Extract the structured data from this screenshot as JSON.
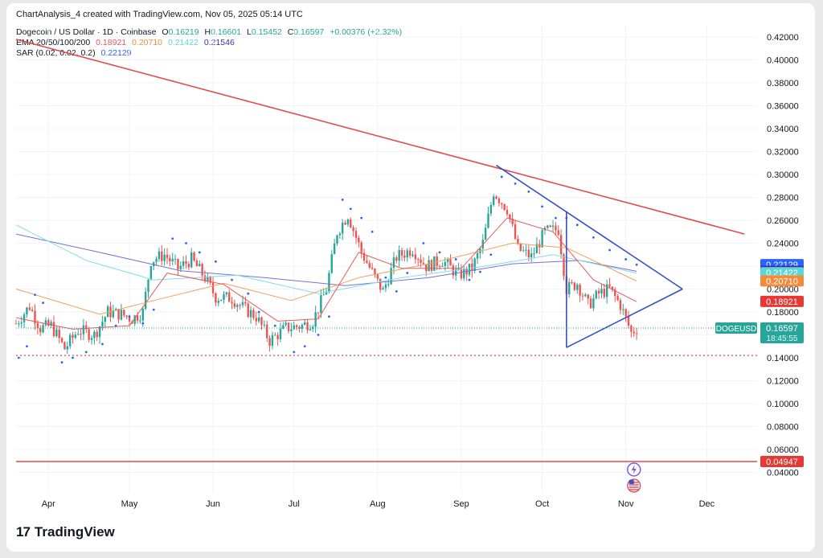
{
  "header": {
    "text": "ChartAnalysis_4 created with TradingView.com, Nov 05, 2025 05:14 UTC"
  },
  "legend": {
    "symbol_line": {
      "title": "Dogecoin / US Dollar · 1D · Coinbase",
      "o_label": "O",
      "o": "0.16219",
      "h_label": "H",
      "h": "0.16601",
      "l_label": "L",
      "l": "0.15452",
      "c_label": "C",
      "c": "0.16597",
      "change": "+0.00376 (+2.32%)"
    },
    "ema_line": {
      "title": "EMA 20/50/100/200",
      "v20": "0.18921",
      "v50": "0.20710",
      "v100": "0.21422",
      "v200": "0.21546"
    },
    "sar_line": {
      "title": "SAR (0.02, 0.02, 0.2)",
      "value": "0.22129"
    }
  },
  "brand": {
    "logo": "17",
    "name": "TradingView"
  },
  "colors": {
    "up": "#26a69a",
    "down": "#ef5350",
    "ema20": "#e8585a",
    "ema50": "#f0a05a",
    "ema100": "#7fe0e0",
    "ema200": "#7b6fd6",
    "sar": "#2962ff",
    "resistance": "#e14b4b",
    "triangle": "#3451c4",
    "support": "#e14b4b"
  },
  "chart_data": {
    "type": "candlestick",
    "symbol": "DOGEUSD",
    "timeframe": "1D",
    "y_axis": {
      "ticks": [
        "0.42000",
        "0.40000",
        "0.38000",
        "0.36000",
        "0.34000",
        "0.32000",
        "0.30000",
        "0.28000",
        "0.26000",
        "0.24000",
        "0.22000",
        "0.20000",
        "0.18000",
        "0.16000",
        "0.14000",
        "0.12000",
        "0.10000",
        "0.08000",
        "0.06000",
        "0.04000"
      ],
      "ylim": [
        0.03,
        0.425
      ]
    },
    "x_axis": {
      "ticks": [
        "Apr",
        "May",
        "Jun",
        "Jul",
        "Aug",
        "Sep",
        "Oct",
        "Nov",
        "Dec"
      ]
    },
    "price_labels": [
      {
        "label": "",
        "value": "0.22129",
        "color": "#2962ff"
      },
      {
        "label": "",
        "value": "0.21546",
        "color": "#3a2fa8"
      },
      {
        "label": "",
        "value": "0.21422",
        "color": "#5fd6d6"
      },
      {
        "label": "",
        "value": "0.20710",
        "color": "#f08c3c"
      },
      {
        "label": "",
        "value": "0.18921",
        "color": "#e53935"
      },
      {
        "label": "DOGEUSD",
        "value": "0.16597",
        "countdown": "18:45:55",
        "color": "#26a69a"
      },
      {
        "label": "",
        "value": "0.04947",
        "color": "#e53935"
      }
    ],
    "close_path": [
      [
        "2025-03-20",
        0.17
      ],
      [
        "2025-03-25",
        0.185
      ],
      [
        "2025-03-29",
        0.166
      ],
      [
        "2025-04-02",
        0.168
      ],
      [
        "2025-04-07",
        0.148
      ],
      [
        "2025-04-12",
        0.164
      ],
      [
        "2025-04-18",
        0.16
      ],
      [
        "2025-04-23",
        0.18
      ],
      [
        "2025-04-28",
        0.178
      ],
      [
        "2025-05-02",
        0.174
      ],
      [
        "2025-05-06",
        0.18
      ],
      [
        "2025-05-09",
        0.225
      ],
      [
        "2025-05-14",
        0.23
      ],
      [
        "2025-05-19",
        0.218
      ],
      [
        "2025-05-24",
        0.226
      ],
      [
        "2025-05-29",
        0.21
      ],
      [
        "2025-06-02",
        0.193
      ],
      [
        "2025-06-08",
        0.192
      ],
      [
        "2025-06-13",
        0.182
      ],
      [
        "2025-06-17",
        0.176
      ],
      [
        "2025-06-22",
        0.155
      ],
      [
        "2025-06-28",
        0.166
      ],
      [
        "2025-07-04",
        0.168
      ],
      [
        "2025-07-08",
        0.172
      ],
      [
        "2025-07-13",
        0.2
      ],
      [
        "2025-07-17",
        0.25
      ],
      [
        "2025-07-21",
        0.265
      ],
      [
        "2025-07-26",
        0.232
      ],
      [
        "2025-07-31",
        0.21
      ],
      [
        "2025-08-03",
        0.198
      ],
      [
        "2025-08-08",
        0.228
      ],
      [
        "2025-08-14",
        0.235
      ],
      [
        "2025-08-19",
        0.22
      ],
      [
        "2025-08-25",
        0.225
      ],
      [
        "2025-08-31",
        0.212
      ],
      [
        "2025-09-05",
        0.218
      ],
      [
        "2025-09-09",
        0.24
      ],
      [
        "2025-09-13",
        0.285
      ],
      [
        "2025-09-18",
        0.27
      ],
      [
        "2025-09-22",
        0.235
      ],
      [
        "2025-09-27",
        0.228
      ],
      [
        "2025-10-02",
        0.25
      ],
      [
        "2025-10-07",
        0.252
      ],
      [
        "2025-10-10",
        0.2
      ],
      [
        "2025-10-14",
        0.205
      ],
      [
        "2025-10-18",
        0.186
      ],
      [
        "2025-10-22",
        0.196
      ],
      [
        "2025-10-26",
        0.2
      ],
      [
        "2025-10-30",
        0.186
      ],
      [
        "2025-11-03",
        0.162
      ],
      [
        "2025-11-05",
        0.16597
      ]
    ],
    "ema20": [
      [
        "2025-03-20",
        0.175
      ],
      [
        "2025-04-10",
        0.165
      ],
      [
        "2025-05-01",
        0.168
      ],
      [
        "2025-05-15",
        0.214
      ],
      [
        "2025-06-05",
        0.204
      ],
      [
        "2025-06-25",
        0.172
      ],
      [
        "2025-07-10",
        0.174
      ],
      [
        "2025-07-25",
        0.232
      ],
      [
        "2025-08-10",
        0.218
      ],
      [
        "2025-09-01",
        0.218
      ],
      [
        "2025-09-18",
        0.262
      ],
      [
        "2025-10-05",
        0.25
      ],
      [
        "2025-10-20",
        0.208
      ],
      [
        "2025-11-05",
        0.189
      ]
    ],
    "ema50": [
      [
        "2025-03-20",
        0.2
      ],
      [
        "2025-04-20",
        0.178
      ],
      [
        "2025-05-10",
        0.19
      ],
      [
        "2025-06-05",
        0.205
      ],
      [
        "2025-06-30",
        0.19
      ],
      [
        "2025-07-25",
        0.21
      ],
      [
        "2025-08-20",
        0.222
      ],
      [
        "2025-09-20",
        0.24
      ],
      [
        "2025-10-10",
        0.236
      ],
      [
        "2025-11-05",
        0.207
      ]
    ],
    "ema100": [
      [
        "2025-03-20",
        0.256
      ],
      [
        "2025-04-15",
        0.225
      ],
      [
        "2025-05-10",
        0.208
      ],
      [
        "2025-06-10",
        0.212
      ],
      [
        "2025-07-10",
        0.196
      ],
      [
        "2025-08-10",
        0.21
      ],
      [
        "2025-09-10",
        0.22
      ],
      [
        "2025-10-05",
        0.23
      ],
      [
        "2025-11-05",
        0.214
      ]
    ],
    "ema200": [
      [
        "2025-03-20",
        0.248
      ],
      [
        "2025-04-20",
        0.232
      ],
      [
        "2025-05-20",
        0.216
      ],
      [
        "2025-06-20",
        0.21
      ],
      [
        "2025-07-20",
        0.203
      ],
      [
        "2025-08-20",
        0.21
      ],
      [
        "2025-09-20",
        0.222
      ],
      [
        "2025-10-15",
        0.225
      ],
      [
        "2025-11-05",
        0.2155
      ]
    ],
    "sar_dots": [
      [
        "2025-03-21",
        0.14
      ],
      [
        "2025-03-24",
        0.15
      ],
      [
        "2025-03-27",
        0.195
      ],
      [
        "2025-03-30",
        0.188
      ],
      [
        "2025-04-06",
        0.136
      ],
      [
        "2025-04-10",
        0.14
      ],
      [
        "2025-04-15",
        0.145
      ],
      [
        "2025-04-21",
        0.152
      ],
      [
        "2025-04-26",
        0.168
      ],
      [
        "2025-05-01",
        0.176
      ],
      [
        "2025-05-06",
        0.17
      ],
      [
        "2025-05-10",
        0.182
      ],
      [
        "2025-05-17",
        0.244
      ],
      [
        "2025-05-22",
        0.24
      ],
      [
        "2025-05-27",
        0.232
      ],
      [
        "2025-06-02",
        0.224
      ],
      [
        "2025-06-08",
        0.208
      ],
      [
        "2025-06-14",
        0.196
      ],
      [
        "2025-06-18",
        0.18
      ],
      [
        "2025-06-24",
        0.168
      ],
      [
        "2025-07-01",
        0.145
      ],
      [
        "2025-07-05",
        0.15
      ],
      [
        "2025-07-10",
        0.16
      ],
      [
        "2025-07-14",
        0.176
      ],
      [
        "2025-07-19",
        0.278
      ],
      [
        "2025-07-22",
        0.27
      ],
      [
        "2025-07-26",
        0.262
      ],
      [
        "2025-07-30",
        0.25
      ],
      [
        "2025-08-04",
        0.21
      ],
      [
        "2025-08-08",
        0.198
      ],
      [
        "2025-08-12",
        0.214
      ],
      [
        "2025-08-18",
        0.24
      ],
      [
        "2025-08-24",
        0.232
      ],
      [
        "2025-08-30",
        0.226
      ],
      [
        "2025-09-04",
        0.208
      ],
      [
        "2025-09-08",
        0.215
      ],
      [
        "2025-09-12",
        0.23
      ],
      [
        "2025-09-16",
        0.298
      ],
      [
        "2025-09-21",
        0.292
      ],
      [
        "2025-09-26",
        0.285
      ],
      [
        "2025-10-01",
        0.272
      ],
      [
        "2025-10-06",
        0.262
      ],
      [
        "2025-10-10",
        0.262
      ],
      [
        "2025-10-14",
        0.256
      ],
      [
        "2025-10-20",
        0.245
      ],
      [
        "2025-10-26",
        0.234
      ],
      [
        "2025-11-01",
        0.226
      ],
      [
        "2025-11-05",
        0.2213
      ]
    ],
    "trendlines": [
      {
        "name": "resistance",
        "from": [
          "2025-03-20",
          0.418
        ],
        "to": [
          "2025-12-15",
          0.248
        ]
      },
      {
        "name": "triangle-upper",
        "from": [
          "2025-09-14",
          0.308
        ],
        "to": [
          "2025-11-22",
          0.2
        ]
      },
      {
        "name": "triangle-lower",
        "from": [
          "2025-10-10",
          0.149
        ],
        "to": [
          "2025-11-22",
          0.2
        ]
      },
      {
        "name": "triangle-left",
        "from": [
          "2025-10-10",
          0.149
        ],
        "to": [
          "2025-10-10",
          0.268
        ]
      }
    ],
    "horizontal_levels": [
      {
        "name": "support-dotted",
        "value": 0.142
      },
      {
        "name": "support-solid",
        "value": 0.04947
      }
    ],
    "last_price_line": 0.16597
  }
}
